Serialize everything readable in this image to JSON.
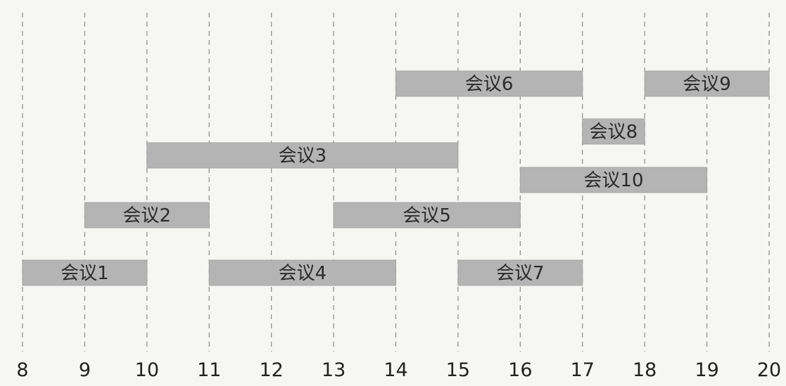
{
  "chart_data": {
    "type": "bar",
    "orientation": "horizontal-intervals",
    "title": "",
    "xlabel": "",
    "ylabel": "",
    "xlim": [
      8,
      20
    ],
    "x_ticks": [
      8,
      9,
      10,
      11,
      12,
      13,
      14,
      15,
      16,
      17,
      18,
      19,
      20
    ],
    "grid": "vertical dashed lines at every hour",
    "colors": {
      "bar": "#b4b4b4",
      "grid": "#8a8a8a",
      "text": "#2b2b2b",
      "background": "#f6f6f4"
    },
    "meetings": [
      {
        "name": "会议1",
        "start": 8,
        "end": 10,
        "row": 1
      },
      {
        "name": "会议2",
        "start": 9,
        "end": 11,
        "row": 2
      },
      {
        "name": "会议3",
        "start": 10,
        "end": 15,
        "row": 4
      },
      {
        "name": "会议4",
        "start": 11,
        "end": 14,
        "row": 1
      },
      {
        "name": "会议5",
        "start": 13,
        "end": 16,
        "row": 2
      },
      {
        "name": "会议6",
        "start": 14,
        "end": 17,
        "row": 6
      },
      {
        "name": "会议7",
        "start": 15,
        "end": 17,
        "row": 1
      },
      {
        "name": "会议8",
        "start": 17,
        "end": 18,
        "row": 5
      },
      {
        "name": "会议9",
        "start": 18,
        "end": 20,
        "row": 6
      },
      {
        "name": "会议10",
        "start": 16,
        "end": 19,
        "row": 3
      }
    ]
  }
}
